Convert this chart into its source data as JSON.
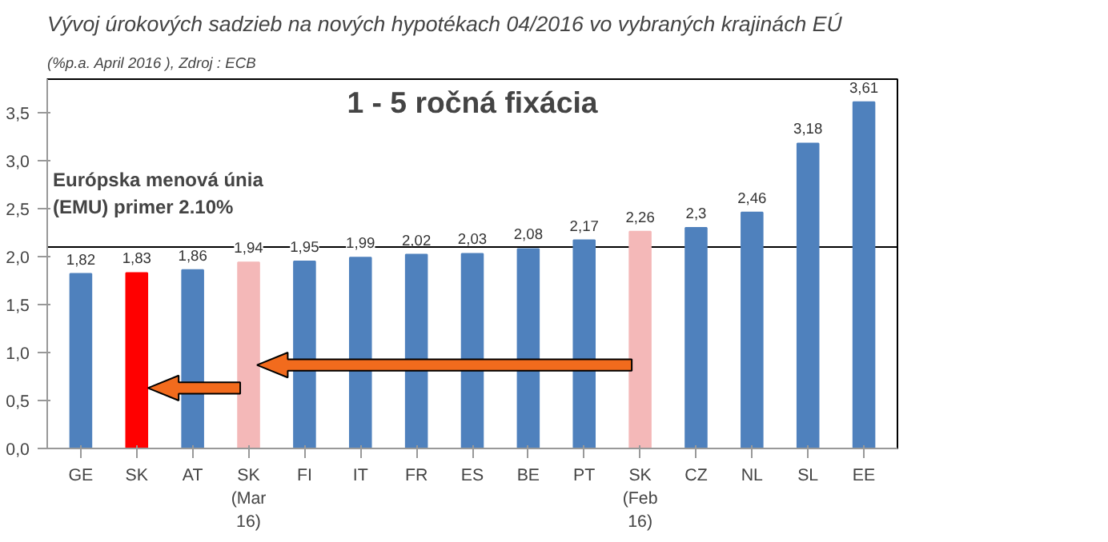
{
  "chart_data": {
    "type": "bar",
    "title": "Vývoj úrokových sadzieb na nových hypotékach 04/2016 vo vybraných krajinách EÚ",
    "subtitle": "(%p.a. April 2016 ), Zdroj : ECB",
    "annotations": [
      "1 - 5 ročná fixácia"
    ],
    "categories": [
      "GE",
      "SK",
      "AT",
      "SK\n(Mar\n16)",
      "FI",
      "IT",
      "FR",
      "ES",
      "BE",
      "PT",
      "SK\n(Feb\n16)",
      "CZ",
      "NL",
      "SL",
      "EE"
    ],
    "values": [
      1.82,
      1.83,
      1.86,
      1.94,
      1.95,
      1.99,
      2.02,
      2.03,
      2.08,
      2.17,
      2.26,
      2.3,
      2.46,
      3.18,
      3.61
    ],
    "value_labels": [
      "1,82",
      "1,83",
      "1,86",
      "1,94",
      "1,95",
      "1,99",
      "2,02",
      "2,03",
      "2,08",
      "2,17",
      "2,26",
      "2,3",
      "2,46",
      "3,18",
      "3,61"
    ],
    "colors": [
      "#4f81bd",
      "#ff0000",
      "#4f81bd",
      "#f4b8b8",
      "#4f81bd",
      "#4f81bd",
      "#4f81bd",
      "#4f81bd",
      "#4f81bd",
      "#4f81bd",
      "#f4b8b8",
      "#4f81bd",
      "#4f81bd",
      "#4f81bd",
      "#4f81bd"
    ],
    "ylim": [
      0,
      3.85
    ],
    "yticks": [
      {
        "value": 0,
        "label": "0,0"
      },
      {
        "value": 0.5,
        "label": "0,5"
      },
      {
        "value": 1,
        "label": "1,0"
      },
      {
        "value": 1.5,
        "label": "1,5"
      },
      {
        "value": 2,
        "label": "2,0"
      },
      {
        "value": 2.5,
        "label": "2,5"
      },
      {
        "value": 3,
        "label": "3,0"
      },
      {
        "value": 3.5,
        "label": "3,5"
      }
    ],
    "ref_lines": [
      {
        "axis": "y",
        "value": 2.1,
        "label": "Európska menová únia\n(EMU) primer 2.10%",
        "color": "#000000"
      }
    ],
    "grid": false
  }
}
